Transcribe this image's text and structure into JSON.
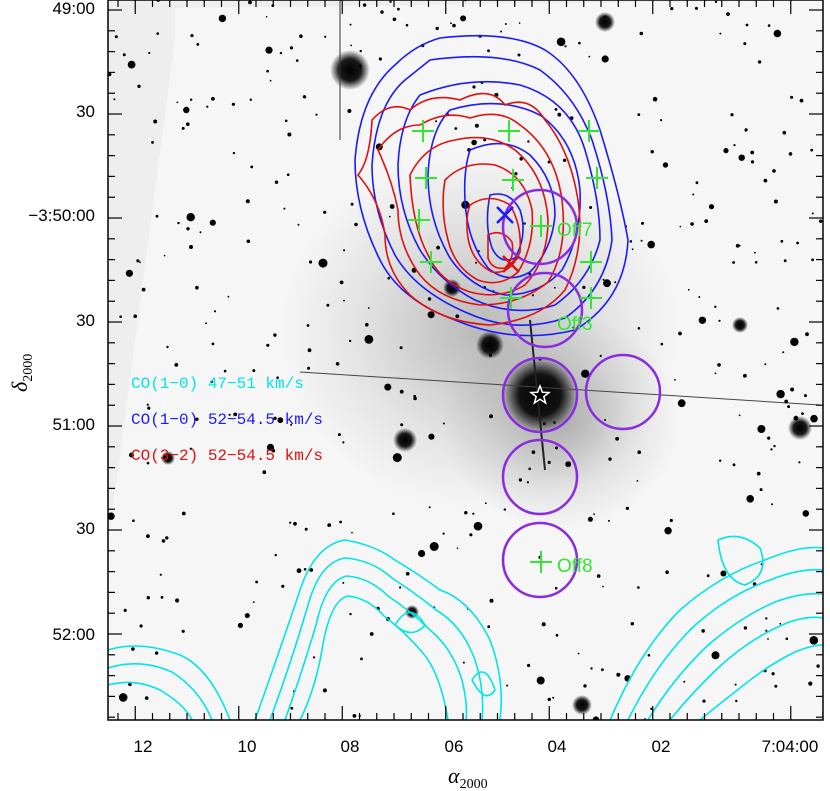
{
  "chart_data": {
    "type": "contour-overlay",
    "xlabel": "α",
    "xlabel_sub": "2000",
    "ylabel": "δ",
    "ylabel_sub": "2000",
    "x_ticks": [
      "12",
      "10",
      "08",
      "06",
      "04",
      "02",
      "7:04:00"
    ],
    "y_ticks": [
      "49:00",
      "30",
      "−3:50:00",
      "30",
      "51:00",
      "30",
      "52:00"
    ],
    "legend": [
      {
        "label": "CO(1−0) 47−51   km/s",
        "color": "#00e5e5"
      },
      {
        "label": "CO(1−0) 52−54.5 km/s",
        "color": "#1a1aff"
      },
      {
        "label": "CO(3−2) 52−54.5 km/s",
        "color": "#e01010"
      }
    ],
    "position_labels": [
      "Off7",
      "Off3",
      "Off8"
    ],
    "colors": {
      "cyan": "#00e5e5",
      "blue": "#1a1aff",
      "red": "#e01010",
      "green": "#33e633",
      "purple": "#8a2be2"
    },
    "markers": {
      "center": "star",
      "peaks": "x-cross",
      "positions": "plus"
    }
  }
}
